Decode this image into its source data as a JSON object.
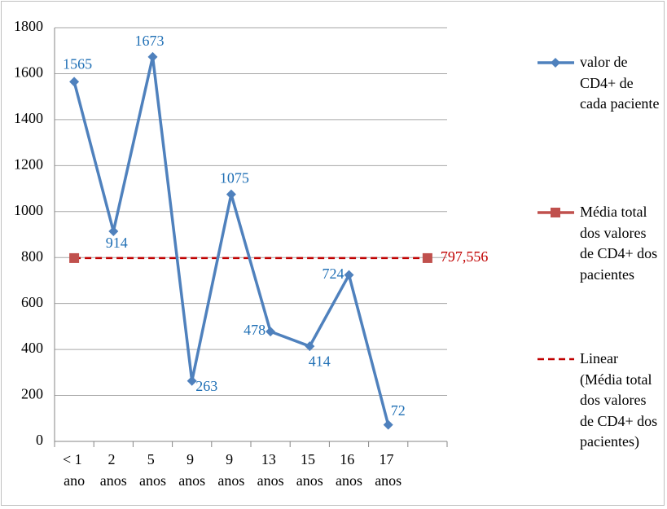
{
  "chart_data": {
    "type": "line",
    "categories": [
      "< 1 ano",
      "2 anos",
      "5 anos",
      "9 anos",
      "9 anos",
      "13 anos",
      "15 anos",
      "16 anos",
      "17 anos",
      null
    ],
    "series": [
      {
        "name": "valor de CD4+ de cada paciente",
        "color": "#4f81bd",
        "marker": "diamond",
        "values": [
          1565,
          914,
          1673,
          263,
          1075,
          478,
          414,
          724,
          72,
          null
        ]
      },
      {
        "name": "Média total dos valores de CD4+ dos pacientes",
        "color": "#c0504d",
        "marker": "square",
        "values": [
          797.556,
          null,
          null,
          null,
          null,
          null,
          null,
          null,
          null,
          797.556
        ],
        "value_labels": [
          null,
          null,
          null,
          null,
          null,
          null,
          null,
          null,
          null,
          "797,556"
        ]
      },
      {
        "name": "Linear (Média total dos valores de CD4+ dos pacientes)",
        "color": "#c00000",
        "dashed": true,
        "values": [
          797.556,
          797.556,
          797.556,
          797.556,
          797.556,
          797.556,
          797.556,
          797.556,
          797.556,
          797.556
        ]
      }
    ],
    "ylim": [
      0,
      1800
    ],
    "yticks": [
      0,
      200,
      400,
      600,
      800,
      1000,
      1200,
      1400,
      1600,
      1800
    ],
    "grid": true,
    "legend": "right"
  }
}
